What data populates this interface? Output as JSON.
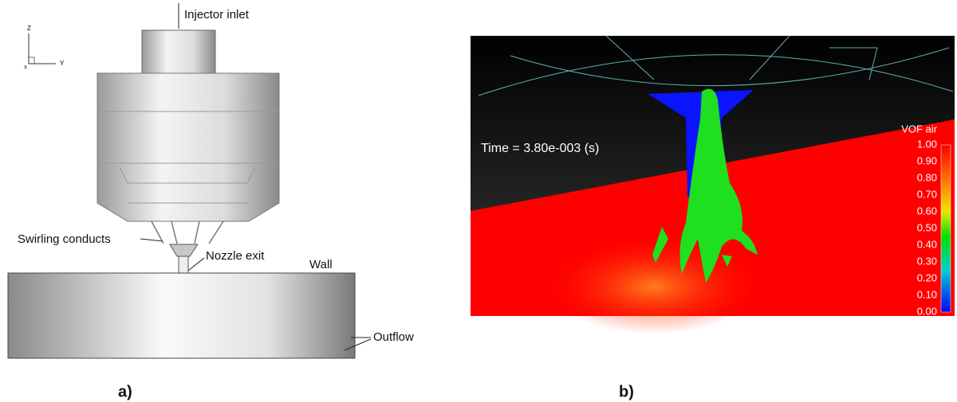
{
  "panel_a": {
    "caption": "a)",
    "axes": {
      "z": "Z",
      "y": "Y",
      "x": "X"
    },
    "labels": {
      "injector_inlet": "Injector inlet",
      "swirling_conducts": "Swirling conducts",
      "nozzle_exit": "Nozzle exit",
      "wall": "Wall",
      "outflow": "Outflow"
    }
  },
  "panel_b": {
    "caption": "b)",
    "time": "Time = 3.80e-003 (s)",
    "colorbar": {
      "title": "VOF air",
      "ticks": [
        "1.00",
        "0.90",
        "0.80",
        "0.70",
        "0.60",
        "0.50",
        "0.40",
        "0.30",
        "0.20",
        "0.10",
        "0.00"
      ]
    }
  }
}
